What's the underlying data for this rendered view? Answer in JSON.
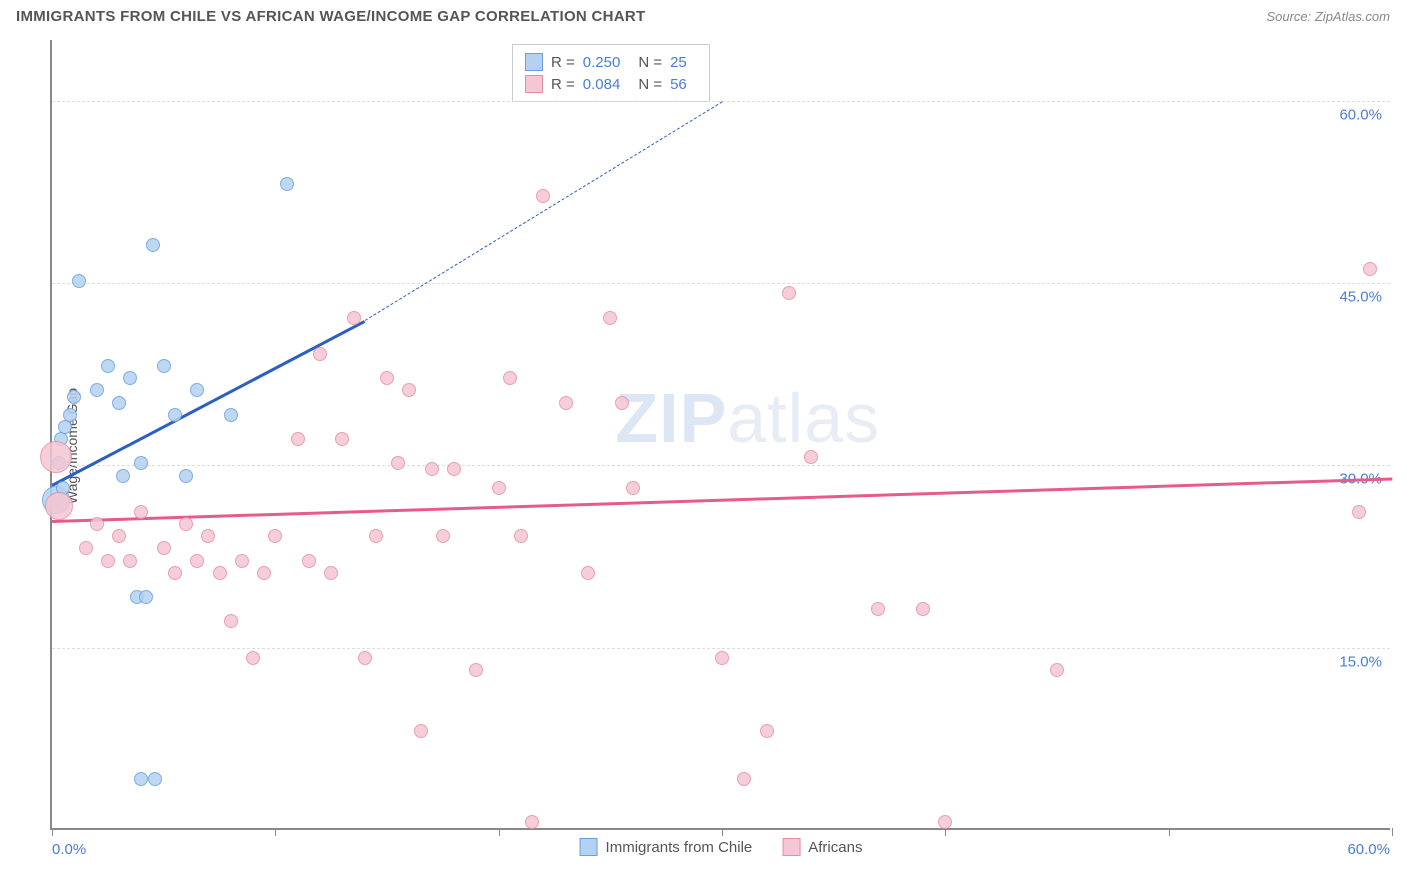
{
  "header": {
    "title": "IMMIGRANTS FROM CHILE VS AFRICAN WAGE/INCOME GAP CORRELATION CHART",
    "source_prefix": "Source: ",
    "source_name": "ZipAtlas.com"
  },
  "chart": {
    "type": "scatter",
    "ylabel": "Wage/Income Gap",
    "xlim": [
      0,
      60
    ],
    "ylim": [
      0,
      65
    ],
    "xtick_positions": [
      0,
      10,
      20,
      30,
      40,
      50,
      60
    ],
    "xtick_labels_shown": {
      "0": "0.0%",
      "60": "60.0%"
    },
    "ytick_positions": [
      15,
      30,
      45,
      60
    ],
    "ytick_labels": [
      "15.0%",
      "30.0%",
      "45.0%",
      "60.0%"
    ],
    "grid_color": "#dddddd",
    "axis_color": "#888888",
    "background_color": "#ffffff",
    "watermark": {
      "part1": "ZIP",
      "part2": "atlas"
    },
    "series": [
      {
        "name": "Immigrants from Chile",
        "fill": "#b3d1f0",
        "stroke": "#6aa0de",
        "trend_color": "#2b5fc1",
        "trend_start": [
          0,
          28.5
        ],
        "trend_end_solid": [
          14,
          42
        ],
        "trend_end_dashed": [
          30,
          60
        ],
        "R": "0.250",
        "N": "25",
        "points": [
          {
            "x": 0.2,
            "y": 27,
            "r": 14
          },
          {
            "x": 0.3,
            "y": 30,
            "r": 7
          },
          {
            "x": 0.4,
            "y": 32,
            "r": 7
          },
          {
            "x": 0.6,
            "y": 33,
            "r": 7
          },
          {
            "x": 0.8,
            "y": 34,
            "r": 7
          },
          {
            "x": 1.0,
            "y": 35.5,
            "r": 7
          },
          {
            "x": 0.5,
            "y": 28,
            "r": 7
          },
          {
            "x": 1.2,
            "y": 45,
            "r": 7
          },
          {
            "x": 2.0,
            "y": 36,
            "r": 7
          },
          {
            "x": 2.5,
            "y": 38,
            "r": 7
          },
          {
            "x": 3.0,
            "y": 35,
            "r": 7
          },
          {
            "x": 3.2,
            "y": 29,
            "r": 7
          },
          {
            "x": 3.5,
            "y": 37,
            "r": 7
          },
          {
            "x": 4.0,
            "y": 30,
            "r": 7
          },
          {
            "x": 4.5,
            "y": 48,
            "r": 7
          },
          {
            "x": 5.0,
            "y": 38,
            "r": 7
          },
          {
            "x": 5.5,
            "y": 34,
            "r": 7
          },
          {
            "x": 6.0,
            "y": 29,
            "r": 7
          },
          {
            "x": 6.5,
            "y": 36,
            "r": 7
          },
          {
            "x": 8.0,
            "y": 34,
            "r": 7
          },
          {
            "x": 10.5,
            "y": 53,
            "r": 7
          },
          {
            "x": 3.8,
            "y": 19,
            "r": 7
          },
          {
            "x": 4.2,
            "y": 19,
            "r": 7
          },
          {
            "x": 4.0,
            "y": 4,
            "r": 7
          },
          {
            "x": 4.6,
            "y": 4,
            "r": 7
          }
        ]
      },
      {
        "name": "Africans",
        "fill": "#f5c6d3",
        "stroke": "#e48fa8",
        "trend_color": "#e75a8c",
        "trend_start": [
          0,
          25.5
        ],
        "trend_end_solid": [
          60,
          29
        ],
        "R": "0.084",
        "N": "56",
        "points": [
          {
            "x": 0.2,
            "y": 30.5,
            "r": 16
          },
          {
            "x": 0.3,
            "y": 26.5,
            "r": 14
          },
          {
            "x": 1.5,
            "y": 23,
            "r": 7
          },
          {
            "x": 2.0,
            "y": 25,
            "r": 7
          },
          {
            "x": 2.5,
            "y": 22,
            "r": 7
          },
          {
            "x": 3.0,
            "y": 24,
            "r": 7
          },
          {
            "x": 3.5,
            "y": 22,
            "r": 7
          },
          {
            "x": 4.0,
            "y": 26,
            "r": 7
          },
          {
            "x": 5.0,
            "y": 23,
            "r": 7
          },
          {
            "x": 5.5,
            "y": 21,
            "r": 7
          },
          {
            "x": 6.0,
            "y": 25,
            "r": 7
          },
          {
            "x": 6.5,
            "y": 22,
            "r": 7
          },
          {
            "x": 7.0,
            "y": 24,
            "r": 7
          },
          {
            "x": 7.5,
            "y": 21,
            "r": 7
          },
          {
            "x": 8.0,
            "y": 17,
            "r": 7
          },
          {
            "x": 8.5,
            "y": 22,
            "r": 7
          },
          {
            "x": 9.0,
            "y": 14,
            "r": 7
          },
          {
            "x": 9.5,
            "y": 21,
            "r": 7
          },
          {
            "x": 10.0,
            "y": 24,
            "r": 7
          },
          {
            "x": 11.0,
            "y": 32,
            "r": 7
          },
          {
            "x": 11.5,
            "y": 22,
            "r": 7
          },
          {
            "x": 12.0,
            "y": 39,
            "r": 7
          },
          {
            "x": 12.5,
            "y": 21,
            "r": 7
          },
          {
            "x": 13.0,
            "y": 32,
            "r": 7
          },
          {
            "x": 13.5,
            "y": 42,
            "r": 7
          },
          {
            "x": 14.0,
            "y": 14,
            "r": 7
          },
          {
            "x": 14.5,
            "y": 24,
            "r": 7
          },
          {
            "x": 15.0,
            "y": 37,
            "r": 7
          },
          {
            "x": 15.5,
            "y": 30,
            "r": 7
          },
          {
            "x": 16.0,
            "y": 36,
            "r": 7
          },
          {
            "x": 16.5,
            "y": 8,
            "r": 7
          },
          {
            "x": 17.0,
            "y": 29.5,
            "r": 7
          },
          {
            "x": 17.5,
            "y": 24,
            "r": 7
          },
          {
            "x": 18.0,
            "y": 29.5,
            "r": 7
          },
          {
            "x": 19.0,
            "y": 13,
            "r": 7
          },
          {
            "x": 20.0,
            "y": 28,
            "r": 7
          },
          {
            "x": 20.5,
            "y": 37,
            "r": 7
          },
          {
            "x": 21.0,
            "y": 24,
            "r": 7
          },
          {
            "x": 22.0,
            "y": 52,
            "r": 7
          },
          {
            "x": 23.0,
            "y": 35,
            "r": 7
          },
          {
            "x": 24.0,
            "y": 21,
            "r": 7
          },
          {
            "x": 25.0,
            "y": 42,
            "r": 7
          },
          {
            "x": 25.5,
            "y": 35,
            "r": 7
          },
          {
            "x": 26.0,
            "y": 28,
            "r": 7
          },
          {
            "x": 30.0,
            "y": 14,
            "r": 7
          },
          {
            "x": 31.0,
            "y": 4,
            "r": 7
          },
          {
            "x": 32.0,
            "y": 8,
            "r": 7
          },
          {
            "x": 33.0,
            "y": 44,
            "r": 7
          },
          {
            "x": 34.0,
            "y": 30.5,
            "r": 7
          },
          {
            "x": 37.0,
            "y": 18,
            "r": 7
          },
          {
            "x": 39.0,
            "y": 18,
            "r": 7
          },
          {
            "x": 40.0,
            "y": 0.5,
            "r": 7
          },
          {
            "x": 45.0,
            "y": 13,
            "r": 7
          },
          {
            "x": 59.0,
            "y": 46,
            "r": 7
          },
          {
            "x": 58.5,
            "y": 26,
            "r": 7
          },
          {
            "x": 21.5,
            "y": 0.5,
            "r": 7
          }
        ]
      }
    ],
    "legend_top": {
      "rows": [
        {
          "swatch_fill": "#b3d1f0",
          "swatch_stroke": "#6aa0de",
          "R": "0.250",
          "N": "25"
        },
        {
          "swatch_fill": "#f5c6d3",
          "swatch_stroke": "#e48fa8",
          "R": "0.084",
          "N": "56"
        }
      ],
      "labels": {
        "R": "R =",
        "N": "N ="
      }
    },
    "legend_bottom": [
      {
        "swatch_fill": "#b3d1f0",
        "swatch_stroke": "#6aa0de",
        "label": "Immigrants from Chile"
      },
      {
        "swatch_fill": "#f5c6d3",
        "swatch_stroke": "#e48fa8",
        "label": "Africans"
      }
    ]
  }
}
